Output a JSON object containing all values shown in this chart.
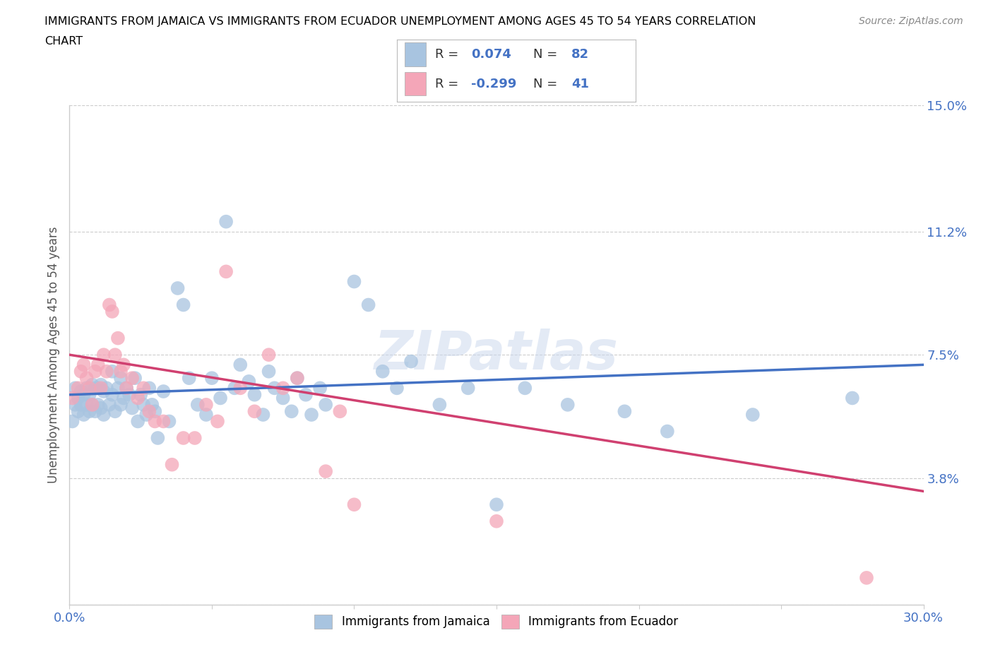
{
  "title_line1": "IMMIGRANTS FROM JAMAICA VS IMMIGRANTS FROM ECUADOR UNEMPLOYMENT AMONG AGES 45 TO 54 YEARS CORRELATION",
  "title_line2": "CHART",
  "source": "Source: ZipAtlas.com",
  "ylabel": "Unemployment Among Ages 45 to 54 years",
  "xlim": [
    0.0,
    0.3
  ],
  "ylim": [
    0.0,
    0.15
  ],
  "xticks": [
    0.0,
    0.05,
    0.1,
    0.15,
    0.2,
    0.25,
    0.3
  ],
  "xtick_labels": [
    "0.0%",
    "",
    "",
    "",
    "",
    "",
    "30.0%"
  ],
  "ytick_positions": [
    0.0,
    0.038,
    0.075,
    0.112,
    0.15
  ],
  "ytick_labels": [
    "",
    "3.8%",
    "7.5%",
    "11.2%",
    "15.0%"
  ],
  "jamaica_color": "#a8c4e0",
  "ecuador_color": "#f4a6b8",
  "jamaica_R": 0.074,
  "jamaica_N": 82,
  "ecuador_R": -0.299,
  "ecuador_N": 41,
  "legend_label_jamaica": "Immigrants from Jamaica",
  "legend_label_ecuador": "Immigrants from Ecuador",
  "trendline_jamaica_color": "#4472c4",
  "trendline_ecuador_color": "#d04070",
  "watermark": "ZIPatlas",
  "jamaica_trendline": [
    0.0,
    0.063,
    0.3,
    0.072
  ],
  "ecuador_trendline": [
    0.0,
    0.075,
    0.3,
    0.034
  ],
  "jamaica_x": [
    0.001,
    0.002,
    0.002,
    0.003,
    0.003,
    0.004,
    0.004,
    0.005,
    0.005,
    0.006,
    0.006,
    0.007,
    0.007,
    0.008,
    0.008,
    0.009,
    0.009,
    0.01,
    0.01,
    0.011,
    0.011,
    0.012,
    0.012,
    0.013,
    0.014,
    0.015,
    0.015,
    0.016,
    0.017,
    0.018,
    0.018,
    0.019,
    0.02,
    0.021,
    0.022,
    0.023,
    0.024,
    0.025,
    0.026,
    0.027,
    0.028,
    0.029,
    0.03,
    0.031,
    0.033,
    0.035,
    0.038,
    0.04,
    0.042,
    0.045,
    0.048,
    0.05,
    0.053,
    0.055,
    0.058,
    0.06,
    0.063,
    0.065,
    0.068,
    0.07,
    0.072,
    0.075,
    0.078,
    0.08,
    0.083,
    0.085,
    0.088,
    0.09,
    0.1,
    0.105,
    0.11,
    0.115,
    0.12,
    0.13,
    0.14,
    0.15,
    0.16,
    0.175,
    0.195,
    0.21,
    0.24,
    0.275
  ],
  "jamaica_y": [
    0.055,
    0.06,
    0.065,
    0.062,
    0.058,
    0.06,
    0.064,
    0.057,
    0.063,
    0.06,
    0.065,
    0.058,
    0.063,
    0.06,
    0.066,
    0.058,
    0.065,
    0.06,
    0.065,
    0.059,
    0.066,
    0.057,
    0.064,
    0.065,
    0.06,
    0.063,
    0.07,
    0.058,
    0.065,
    0.06,
    0.068,
    0.062,
    0.065,
    0.063,
    0.059,
    0.068,
    0.055,
    0.063,
    0.06,
    0.057,
    0.065,
    0.06,
    0.058,
    0.05,
    0.064,
    0.055,
    0.095,
    0.09,
    0.068,
    0.06,
    0.057,
    0.068,
    0.062,
    0.115,
    0.065,
    0.072,
    0.067,
    0.063,
    0.057,
    0.07,
    0.065,
    0.062,
    0.058,
    0.068,
    0.063,
    0.057,
    0.065,
    0.06,
    0.097,
    0.09,
    0.07,
    0.065,
    0.073,
    0.06,
    0.065,
    0.03,
    0.065,
    0.06,
    0.058,
    0.052,
    0.057,
    0.062
  ],
  "ecuador_x": [
    0.001,
    0.003,
    0.004,
    0.005,
    0.006,
    0.007,
    0.008,
    0.009,
    0.01,
    0.011,
    0.012,
    0.013,
    0.014,
    0.015,
    0.016,
    0.017,
    0.018,
    0.019,
    0.02,
    0.022,
    0.024,
    0.026,
    0.028,
    0.03,
    0.033,
    0.036,
    0.04,
    0.044,
    0.048,
    0.052,
    0.055,
    0.06,
    0.065,
    0.07,
    0.075,
    0.08,
    0.09,
    0.095,
    0.1,
    0.15,
    0.28
  ],
  "ecuador_y": [
    0.062,
    0.065,
    0.07,
    0.072,
    0.068,
    0.065,
    0.06,
    0.07,
    0.072,
    0.065,
    0.075,
    0.07,
    0.09,
    0.088,
    0.075,
    0.08,
    0.07,
    0.072,
    0.065,
    0.068,
    0.062,
    0.065,
    0.058,
    0.055,
    0.055,
    0.042,
    0.05,
    0.05,
    0.06,
    0.055,
    0.1,
    0.065,
    0.058,
    0.075,
    0.065,
    0.068,
    0.04,
    0.058,
    0.03,
    0.025,
    0.008
  ]
}
